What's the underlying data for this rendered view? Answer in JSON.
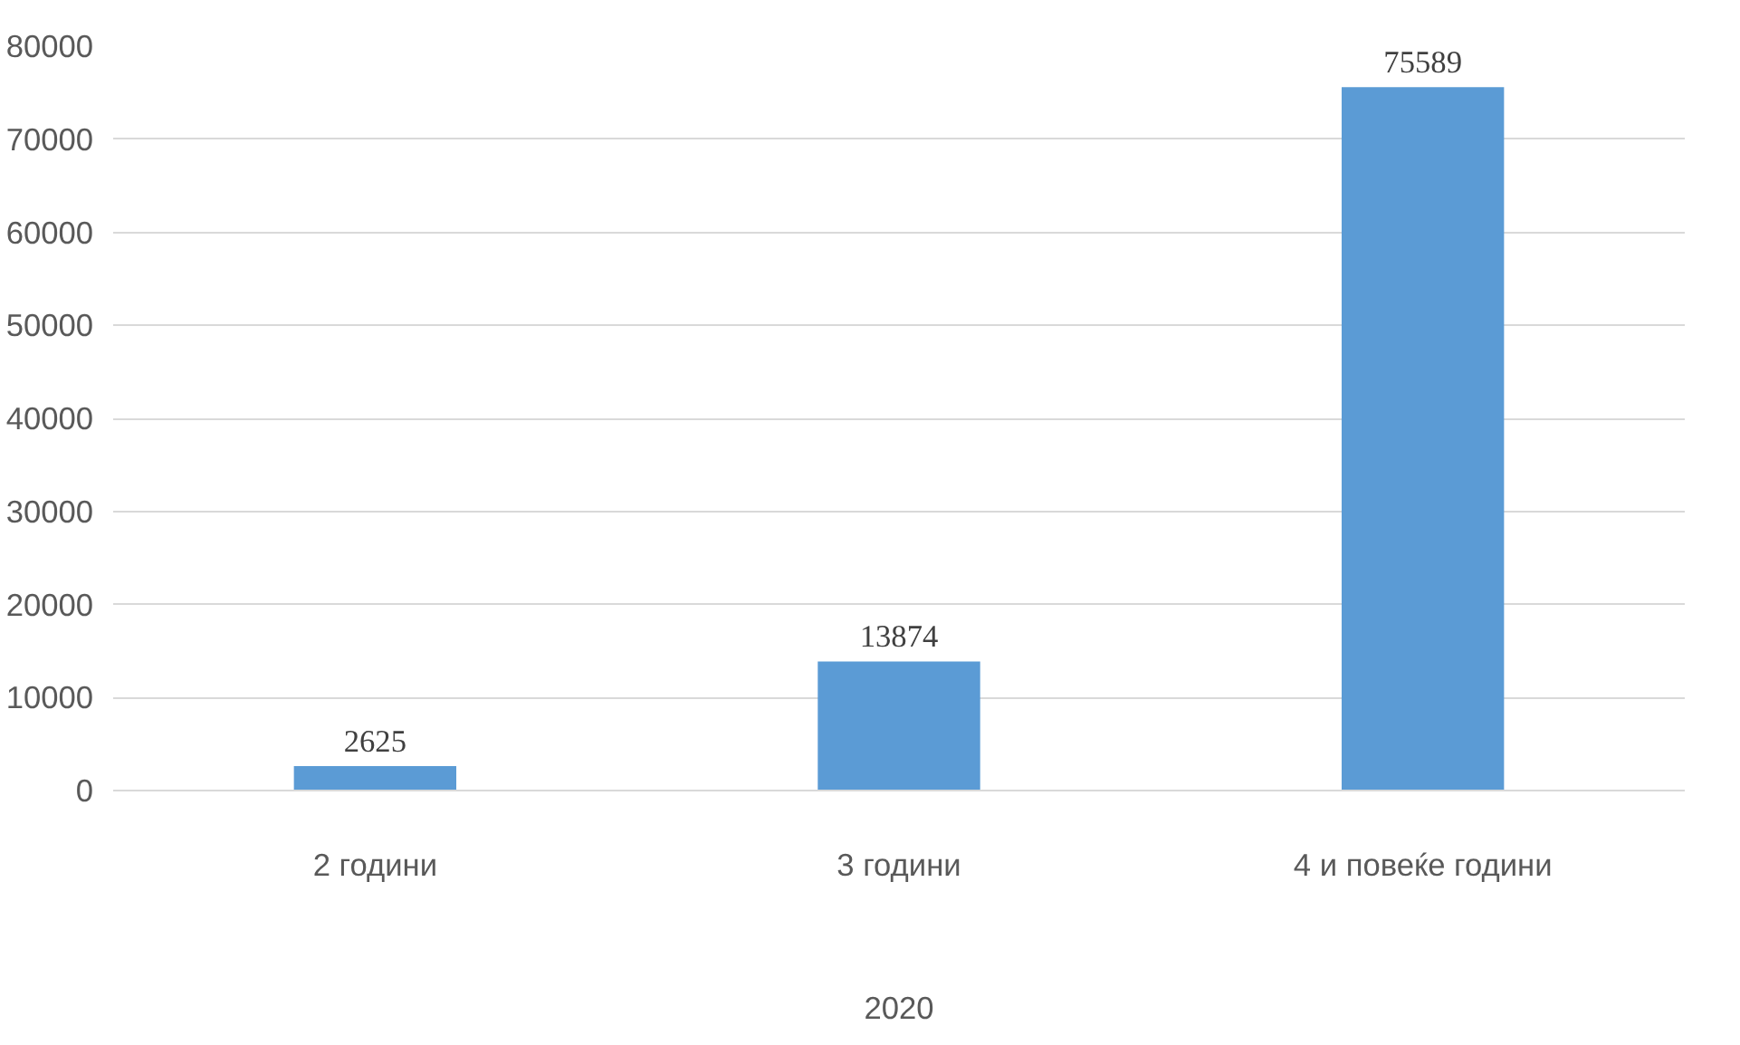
{
  "chart_data": {
    "type": "bar",
    "categories": [
      "2 години",
      "3 години",
      "4 и повеќе години"
    ],
    "values": [
      2625,
      13874,
      75589
    ],
    "color": "#5b9bd5",
    "xlabel": "2020",
    "ylim": [
      0,
      80000
    ],
    "yticks": [
      0,
      10000,
      20000,
      30000,
      40000,
      50000,
      60000,
      70000,
      80000
    ],
    "grid": "y",
    "data_labels": true
  }
}
